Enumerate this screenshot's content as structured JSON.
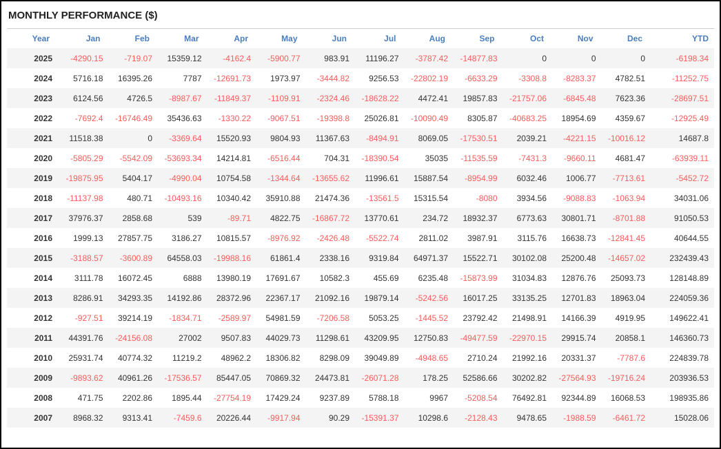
{
  "title": "MONTHLY PERFORMANCE ($)",
  "colors": {
    "header_text": "#4a7ec0",
    "negative_value": "#fb5b5b",
    "positive_value": "#333333",
    "row_stripe": "#f4f4f4",
    "outer_border": "#000000",
    "divider": "#cccccc"
  },
  "chart_data": {
    "type": "table",
    "title": "MONTHLY PERFORMANCE ($)",
    "columns": [
      "Year",
      "Jan",
      "Feb",
      "Mar",
      "Apr",
      "May",
      "Jun",
      "Jul",
      "Aug",
      "Sep",
      "Oct",
      "Nov",
      "Dec",
      "YTD"
    ],
    "rows": [
      {
        "year": "2025",
        "values": [
          "-4290.15",
          "-719.07",
          "15359.12",
          "-4162.4",
          "-5900.77",
          "983.91",
          "11196.27",
          "-3787.42",
          "-14877.83",
          "0",
          "0",
          "0",
          "-6198.34"
        ]
      },
      {
        "year": "2024",
        "values": [
          "5716.18",
          "16395.26",
          "7787",
          "-12691.73",
          "1973.97",
          "-3444.82",
          "9256.53",
          "-22802.19",
          "-6633.29",
          "-3308.8",
          "-8283.37",
          "4782.51",
          "-11252.75"
        ]
      },
      {
        "year": "2023",
        "values": [
          "6124.56",
          "4726.5",
          "-8987.67",
          "-11849.37",
          "-1109.91",
          "-2324.46",
          "-18628.22",
          "4472.41",
          "19857.83",
          "-21757.06",
          "-6845.48",
          "7623.36",
          "-28697.51"
        ]
      },
      {
        "year": "2022",
        "values": [
          "-7692.4",
          "-16746.49",
          "35436.63",
          "-1330.22",
          "-9067.51",
          "-19398.8",
          "25026.81",
          "-10090.49",
          "8305.87",
          "-40683.25",
          "18954.69",
          "4359.67",
          "-12925.49"
        ]
      },
      {
        "year": "2021",
        "values": [
          "11518.38",
          "0",
          "-3369.64",
          "15520.93",
          "9804.93",
          "11367.63",
          "-8494.91",
          "8069.05",
          "-17530.51",
          "2039.21",
          "-4221.15",
          "-10016.12",
          "14687.8"
        ]
      },
      {
        "year": "2020",
        "values": [
          "-5805.29",
          "-5542.09",
          "-53693.34",
          "14214.81",
          "-6516.44",
          "704.31",
          "-18390.54",
          "35035",
          "-11535.59",
          "-7431.3",
          "-9660.11",
          "4681.47",
          "-63939.11"
        ]
      },
      {
        "year": "2019",
        "values": [
          "-19875.95",
          "5404.17",
          "-4990.04",
          "10754.58",
          "-1344.64",
          "-13655.62",
          "11996.61",
          "15887.54",
          "-8954.99",
          "6032.46",
          "1006.77",
          "-7713.61",
          "-5452.72"
        ]
      },
      {
        "year": "2018",
        "values": [
          "-11137.98",
          "480.71",
          "-10493.16",
          "10340.42",
          "35910.88",
          "21474.36",
          "-13561.5",
          "15315.54",
          "-8080",
          "3934.56",
          "-9088.83",
          "-1063.94",
          "34031.06"
        ]
      },
      {
        "year": "2017",
        "values": [
          "37976.37",
          "2858.68",
          "539",
          "-89.71",
          "4822.75",
          "-16867.72",
          "13770.61",
          "234.72",
          "18932.37",
          "6773.63",
          "30801.71",
          "-8701.88",
          "91050.53"
        ]
      },
      {
        "year": "2016",
        "values": [
          "1999.13",
          "27857.75",
          "3186.27",
          "10815.57",
          "-8976.92",
          "-2426.48",
          "-5522.74",
          "2811.02",
          "3987.91",
          "3115.76",
          "16638.73",
          "-12841.45",
          "40644.55"
        ]
      },
      {
        "year": "2015",
        "values": [
          "-3188.57",
          "-3600.89",
          "64558.03",
          "-19988.16",
          "61861.4",
          "2338.16",
          "9319.84",
          "64971.37",
          "15522.71",
          "30102.08",
          "25200.48",
          "-14657.02",
          "232439.43"
        ]
      },
      {
        "year": "2014",
        "values": [
          "3111.78",
          "16072.45",
          "6888",
          "13980.19",
          "17691.67",
          "10582.3",
          "455.69",
          "6235.48",
          "-15873.99",
          "31034.83",
          "12876.76",
          "25093.73",
          "128148.89"
        ]
      },
      {
        "year": "2013",
        "values": [
          "8286.91",
          "34293.35",
          "14192.86",
          "28372.96",
          "22367.17",
          "21092.16",
          "19879.14",
          "-5242.56",
          "16017.25",
          "33135.25",
          "12701.83",
          "18963.04",
          "224059.36"
        ]
      },
      {
        "year": "2012",
        "values": [
          "-927.51",
          "39214.19",
          "-1834.71",
          "-2589.97",
          "54981.59",
          "-7206.58",
          "5053.25",
          "-1445.52",
          "23792.42",
          "21498.91",
          "14166.39",
          "4919.95",
          "149622.41"
        ]
      },
      {
        "year": "2011",
        "values": [
          "44391.76",
          "-24156.08",
          "27002",
          "9507.83",
          "44029.73",
          "11298.61",
          "43209.95",
          "12750.83",
          "-49477.59",
          "-22970.15",
          "29915.74",
          "20858.1",
          "146360.73"
        ]
      },
      {
        "year": "2010",
        "values": [
          "25931.74",
          "40774.32",
          "11219.2",
          "48962.2",
          "18306.82",
          "8298.09",
          "39049.89",
          "-4948.65",
          "2710.24",
          "21992.16",
          "20331.37",
          "-7787.6",
          "224839.78"
        ]
      },
      {
        "year": "2009",
        "values": [
          "-9893.62",
          "40961.26",
          "-17536.57",
          "85447.05",
          "70869.32",
          "24473.81",
          "-26071.28",
          "178.25",
          "52586.66",
          "30202.82",
          "-27564.93",
          "-19716.24",
          "203936.53"
        ]
      },
      {
        "year": "2008",
        "values": [
          "471.75",
          "2202.86",
          "1895.44",
          "-27754.19",
          "17429.24",
          "9237.89",
          "5788.18",
          "9967",
          "-5208.54",
          "76492.81",
          "92344.89",
          "16068.53",
          "198935.86"
        ]
      },
      {
        "year": "2007",
        "values": [
          "8968.32",
          "9313.41",
          "-7459.6",
          "20226.44",
          "-9917.94",
          "90.29",
          "-15391.37",
          "10298.6",
          "-2128.43",
          "9478.65",
          "-1988.59",
          "-6461.72",
          "15028.06"
        ]
      }
    ]
  }
}
